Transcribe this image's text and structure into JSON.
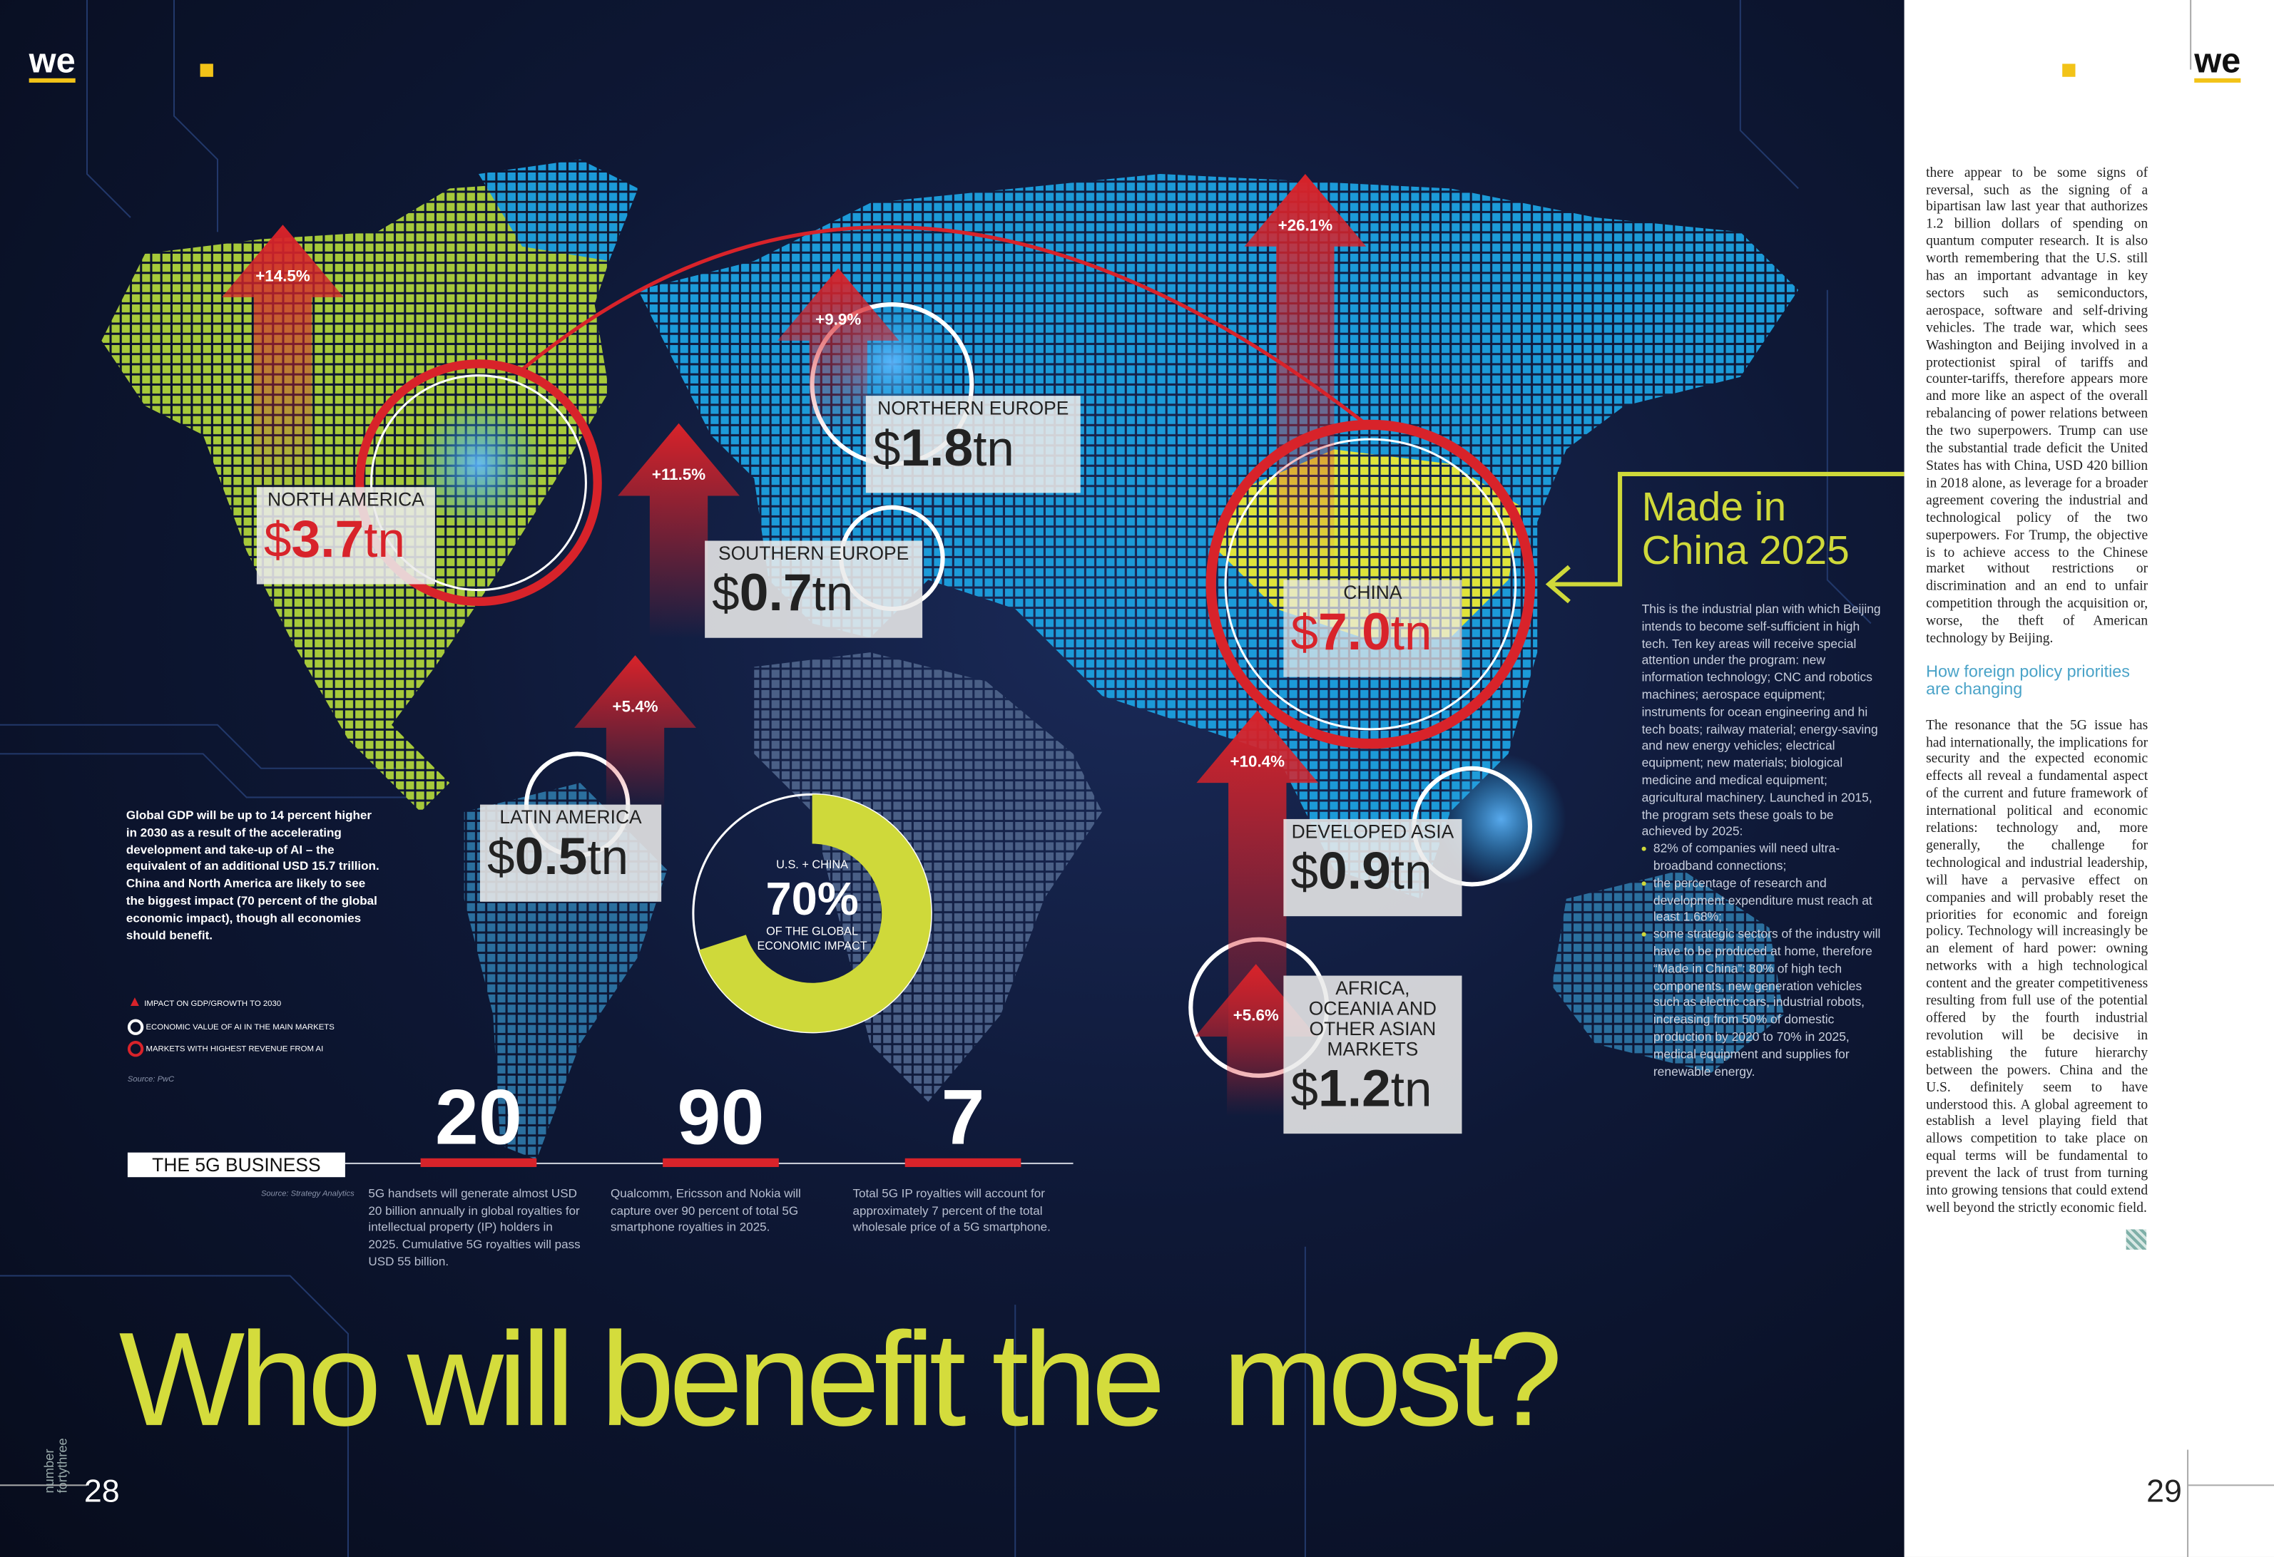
{
  "header": {
    "logo_left": "we",
    "logo_right": "we"
  },
  "map": {
    "regions": [
      {
        "name": "NORTH AMERICA",
        "currency": "$",
        "amount": "3.7",
        "unit": "tn",
        "growth": "+14.5%"
      },
      {
        "name": "NORTHERN EUROPE",
        "currency": "$",
        "amount": "1.8",
        "unit": "tn",
        "growth": "+9.9%"
      },
      {
        "name": "SOUTHERN EUROPE",
        "currency": "$",
        "amount": "0.7",
        "unit": "tn",
        "growth": "+11.5%"
      },
      {
        "name": "LATIN AMERICA",
        "currency": "$",
        "amount": "0.5",
        "unit": "tn",
        "growth": "+5.4%"
      },
      {
        "name": "CHINA",
        "currency": "$",
        "amount": "7.0",
        "unit": "tn",
        "growth": "+26.1%"
      },
      {
        "name": "DEVELOPED ASIA",
        "currency": "$",
        "amount": "0.9",
        "unit": "tn",
        "growth": "+10.4%"
      },
      {
        "name": "AFRICA, OCEANIA AND OTHER ASIAN MARKETS",
        "currency": "$",
        "amount": "1.2",
        "unit": "tn",
        "growth": "+5.6%"
      }
    ],
    "donut": {
      "top": "U.S. + CHINA",
      "value": 70,
      "label": "70%",
      "bottom": "OF THE GLOBAL ECONOMIC IMPACT"
    }
  },
  "intro": "Global GDP will be up to 14 percent higher in 2030 as a result of the accelerating development and take-up of AI – the equivalent of an additional USD 15.7 trillion. China and North America are likely to see the biggest impact (70 percent of the global economic impact), though all economies should benefit.",
  "legend": [
    "IMPACT ON GDP/GROWTH TO 2030",
    "ECONOMIC VALUE OF AI IN THE MAIN MARKETS",
    "MARKETS WITH HIGHEST REVENUE FROM AI"
  ],
  "source": "Source: PwC",
  "fiveg": {
    "title": "THE 5G BUSINESS",
    "source": "Source: Strategy Analytics",
    "stats": [
      {
        "number": "20",
        "text": "5G handsets will generate almost USD 20 billion annually in global royalties for intellectual property (IP) holders in 2025. Cumulative 5G royalties will pass USD 55 billion."
      },
      {
        "number": "90",
        "text": "Qualcomm, Ericsson and Nokia will capture over 90 percent of total 5G smartphone royalties in 2025."
      },
      {
        "number": "7",
        "text": "Total 5G IP royalties will account for approximately 7 percent of the total wholesale price of a 5G smartphone."
      }
    ]
  },
  "headline": "Who will benefit the  most?",
  "sidebar": {
    "title": "Made in China 2025",
    "body": "This is the industrial plan with which Beijing intends to become self-sufficient in high tech. Ten key areas will receive special attention under the program: new information technology; CNC and robotics machines; aerospace equipment; instruments for ocean engineering and hi tech boats; railway material; energy-saving and new energy vehicles; electrical equipment; new materials; biological medicine and medical equipment; agricultural machinery. Launched in 2015, the program sets these goals to be achieved by 2025:",
    "bullets": [
      "82% of companies will need ultra-broadband connections;",
      "the percentage of research and development expenditure must reach at least 1.68%;",
      "some strategic sectors of the industry will have to be produced at home, therefore “Made in China”: 80% of high tech components, new generation vehicles such as electric cars, industrial robots, increasing from 50% of domestic production by 2020 to 70% in 2025, medical equipment and supplies for renewable energy."
    ]
  },
  "article": {
    "paragraph_1": "there appear to be some signs of reversal, such as the signing of a bipartisan law last year that authorizes 1.2 billion dollars of spending on quantum computer research. It is also worth remembering that the U.S. still has an important advantage in key sectors such as semiconductors, aerospace, software and self-driving vehicles. The trade war, which sees Washington and Beijing involved in a protectionist spiral of tariffs and counter-tariffs, therefore appears more and more like an aspect of the overall rebalancing of power relations between the two superpowers. Trump can use the substantial trade deficit the United States has with China, USD 420 billion in 2018 alone, as leverage for a broader agreement covering the industrial and technological policy of the two superpowers. For Trump, the objective is to achieve access to the Chinese market without restrictions or discrimination and an end to unfair competition through the acquisition or, worse, the theft of American technology by Beijing.",
    "subhead": "How foreign policy priorities are changing",
    "paragraph_2": "The resonance that the 5G issue has had internationally, the implications for security and the expected economic effects all reveal a fundamental aspect of the current and future framework of international political and economic relations: technology and, more generally, the challenge for technological and industrial leadership, will have a pervasive effect on companies and will probably reset the priorities for economic and foreign policy. Technology will increasingly be an element of hard power: owning networks with a high technological content and the greater competitiveness resulting from full use of the potential offered by the fourth industrial revolution will be decisive in establishing the future hierarchy between the powers. China and the U.S. definitely seem to have understood this. A global agreement to establish a level playing field that allows competition to take place on equal terms will be fundamental to prevent the lack of trust from turning into growing tensions that could extend well beyond the strictly economic field."
  },
  "footer": {
    "page_left": "28",
    "page_right": "29",
    "issue": "number fortythree"
  }
}
